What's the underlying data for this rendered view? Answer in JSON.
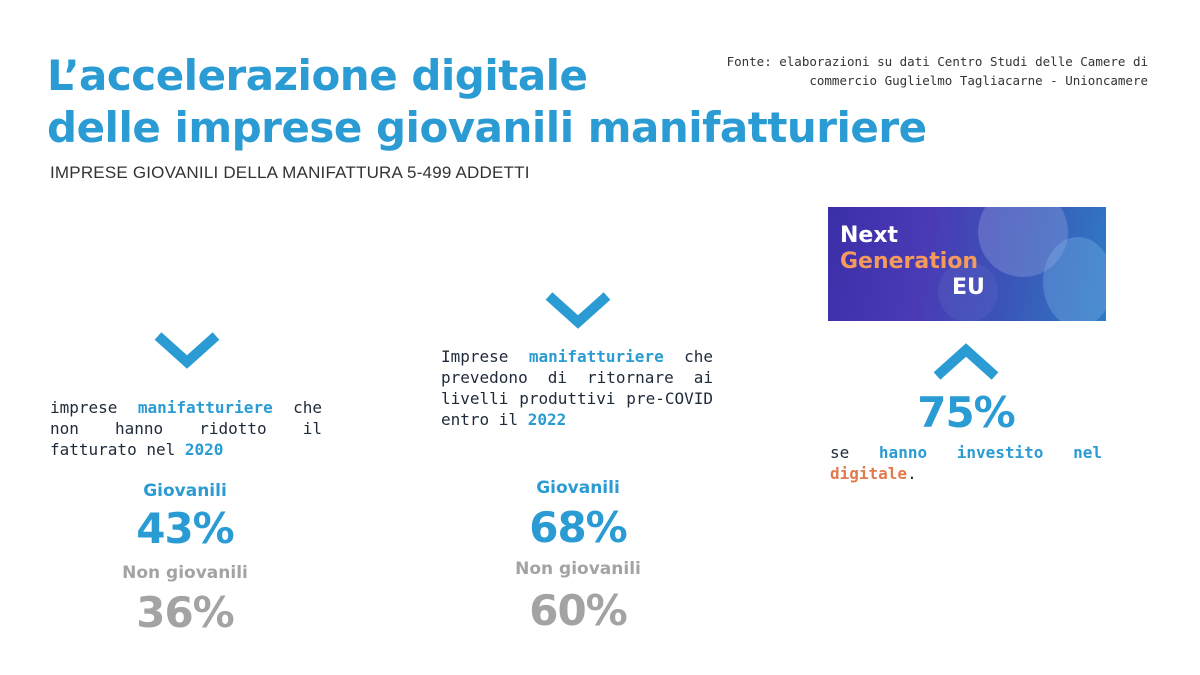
{
  "header": {
    "title_line1": "L’accelerazione digitale",
    "title_line2": "delle imprese giovanili manifatturiere",
    "source_line1": "Fonte: elaborazioni su dati Centro Studi delle Camere di",
    "source_line2": "commercio Guglielmo Tagliacarne - Unioncamere",
    "subtitle": "IMPRESE GIOVANILI DELLA MANIFATTURA 5-499 ADDETTI"
  },
  "panel1": {
    "icon": "chevron-down-icon",
    "text_a": "imprese ",
    "text_hl": "manifatturiere",
    "text_b": " che non hanno ridotto il fatturato nel ",
    "text_year": "2020",
    "label_young": "Giovanili",
    "value_young": "43%",
    "label_other": "Non giovanili",
    "value_other": "36%"
  },
  "panel2": {
    "icon": "chevron-down-icon",
    "text_a": "Imprese ",
    "text_hl": "manifatturiere",
    "text_b": " che prevedono di ritornare ai livelli produttivi pre-COVID entro il ",
    "text_year": "2022",
    "label_young": "Giovanili",
    "value_young": "68%",
    "label_other": "Non giovanili",
    "value_other": "60%"
  },
  "panel3": {
    "banner_line1": "Next",
    "banner_line2": "Generation",
    "banner_line3": "EU",
    "icon": "chevron-up-icon",
    "value": "75%",
    "text_a": "se ",
    "text_hl": "hanno investito nel",
    "text_hl2": "digitale",
    "text_b": "."
  },
  "colors": {
    "accent_blue": "#2a9bd3",
    "accent_orange": "#e07b4f",
    "grey": "#a3a3a3"
  }
}
